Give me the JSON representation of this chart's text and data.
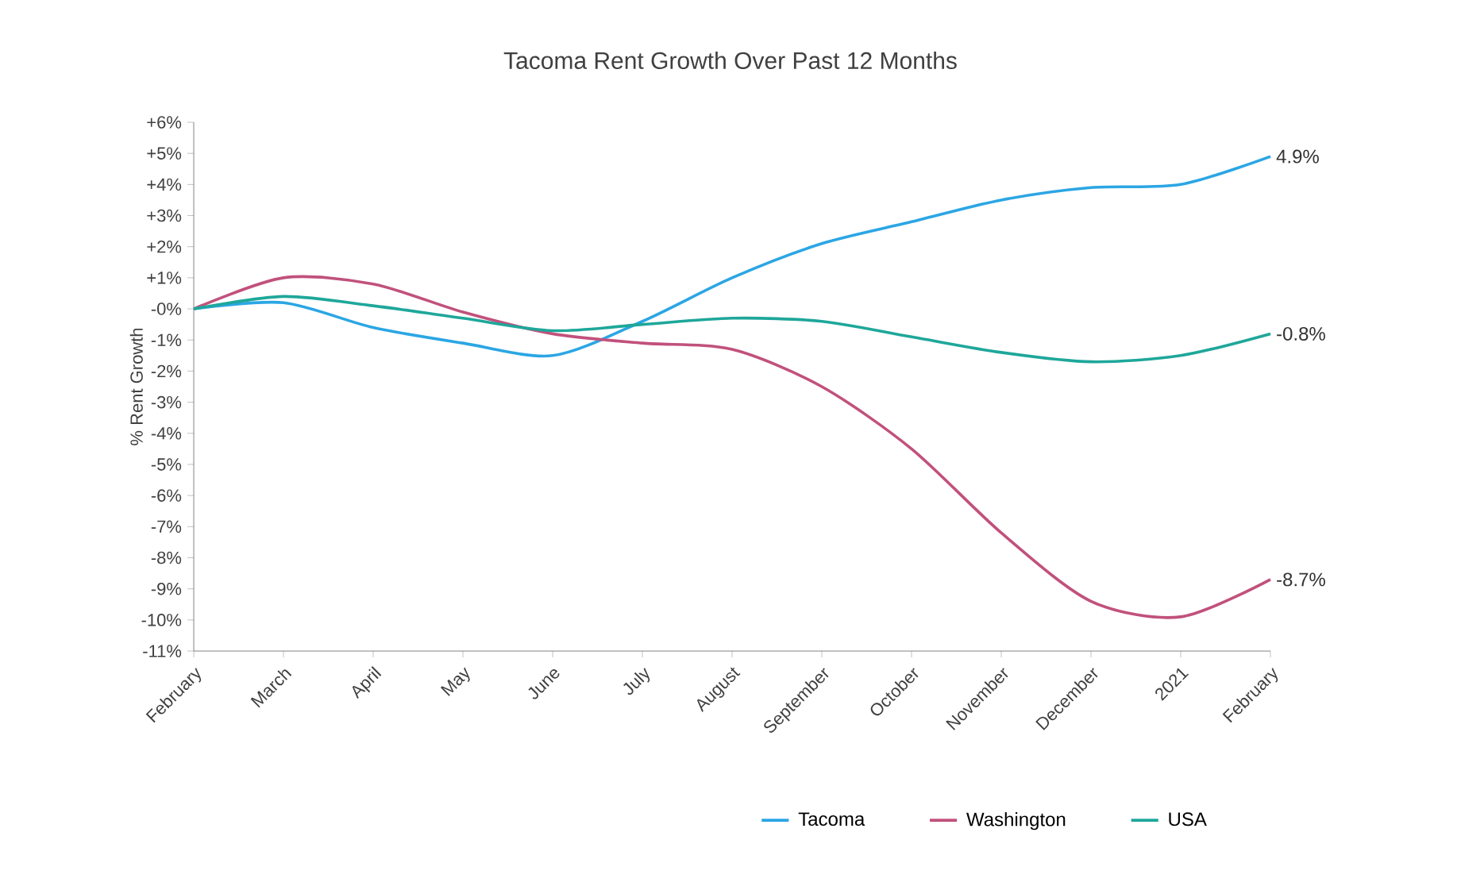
{
  "chart_data": {
    "type": "line",
    "title": "Tacoma Rent Growth Over Past 12 Months",
    "ylabel": "% Rent Growth",
    "categories": [
      "February",
      "March",
      "April",
      "May",
      "June",
      "July",
      "August",
      "September",
      "October",
      "November",
      "December",
      "2021",
      "February"
    ],
    "series": [
      {
        "name": "Tacoma",
        "color": "#2ba6e4",
        "values": [
          0,
          0.2,
          -0.6,
          -1.1,
          -1.5,
          -0.4,
          1.0,
          2.1,
          2.8,
          3.5,
          3.9,
          4.0,
          4.9
        ]
      },
      {
        "name": "Washington",
        "color": "#c1517c",
        "values": [
          0,
          1.0,
          0.8,
          -0.1,
          -0.8,
          -1.1,
          -1.3,
          -2.5,
          -4.5,
          -7.2,
          -9.4,
          -9.9,
          -8.7
        ]
      },
      {
        "name": "USA",
        "color": "#1ea79a",
        "values": [
          0,
          0.4,
          0.1,
          -0.3,
          -0.7,
          -0.5,
          -0.3,
          -0.4,
          -0.9,
          -1.4,
          -1.7,
          -1.5,
          -0.8
        ]
      }
    ],
    "ylim": [
      -11,
      6
    ],
    "yticks": [
      {
        "value": 6,
        "label": "+6%"
      },
      {
        "value": 5,
        "label": "+5%"
      },
      {
        "value": 4,
        "label": "+4%"
      },
      {
        "value": 3,
        "label": "+3%"
      },
      {
        "value": 2,
        "label": "+2%"
      },
      {
        "value": 1,
        "label": "+1%"
      },
      {
        "value": 0,
        "label": "-0%"
      },
      {
        "value": -1,
        "label": "-1%"
      },
      {
        "value": -2,
        "label": "-2%"
      },
      {
        "value": -3,
        "label": "-3%"
      },
      {
        "value": -4,
        "label": "-4%"
      },
      {
        "value": -5,
        "label": "-5%"
      },
      {
        "value": -6,
        "label": "-6%"
      },
      {
        "value": -7,
        "label": "-7%"
      },
      {
        "value": -8,
        "label": "-8%"
      },
      {
        "value": -9,
        "label": "-9%"
      },
      {
        "value": -10,
        "label": "-10%"
      },
      {
        "value": -11,
        "label": "-11%"
      }
    ],
    "annotations": [
      "4.9%",
      "-8.7%",
      "-0.8%"
    ],
    "legend": "bottom",
    "grid": false,
    "marker": "none",
    "line_style": "solid"
  }
}
